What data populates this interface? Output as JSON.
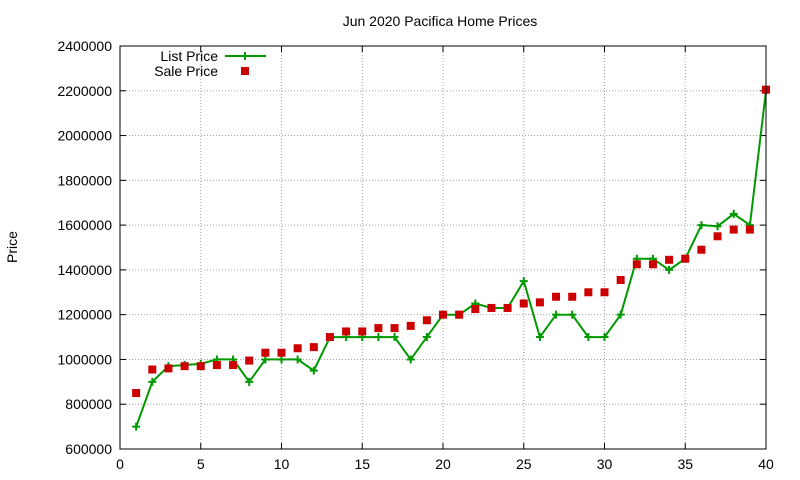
{
  "chart_data": {
    "type": "line",
    "title": "Jun 2020 Pacifica Home Prices",
    "xlabel": "",
    "ylabel": "Price",
    "xlim": [
      0,
      40
    ],
    "ylim": [
      600000,
      2400000
    ],
    "xticks": [
      0,
      5,
      10,
      15,
      20,
      25,
      30,
      35,
      40
    ],
    "yticks": [
      600000,
      800000,
      1000000,
      1200000,
      1400000,
      1600000,
      1800000,
      2000000,
      2200000,
      2400000
    ],
    "grid": true,
    "legend_position": "top-left",
    "series": [
      {
        "name": "List Price",
        "style": "line+cross",
        "color": "#009900",
        "x": [
          1,
          2,
          3,
          4,
          5,
          6,
          7,
          8,
          9,
          10,
          11,
          12,
          13,
          14,
          15,
          16,
          17,
          18,
          19,
          20,
          21,
          22,
          23,
          24,
          25,
          26,
          27,
          28,
          29,
          30,
          31,
          32,
          33,
          34,
          35,
          36,
          37,
          38,
          39,
          40
        ],
        "y": [
          700000,
          900000,
          970000,
          975000,
          980000,
          1000000,
          1000000,
          900000,
          1000000,
          1000000,
          1000000,
          950000,
          1100000,
          1100000,
          1100000,
          1100000,
          1100000,
          1000000,
          1100000,
          1200000,
          1200000,
          1250000,
          1230000,
          1230000,
          1350000,
          1100000,
          1200000,
          1200000,
          1100000,
          1100000,
          1200000,
          1450000,
          1450000,
          1400000,
          1450000,
          1600000,
          1595000,
          1650000,
          1600000,
          2200000
        ]
      },
      {
        "name": "Sale Price",
        "style": "square-markers",
        "color": "#cc0000",
        "x": [
          1,
          2,
          3,
          4,
          5,
          6,
          7,
          8,
          9,
          10,
          11,
          12,
          13,
          14,
          15,
          16,
          17,
          18,
          19,
          20,
          21,
          22,
          23,
          24,
          25,
          26,
          27,
          28,
          29,
          30,
          31,
          32,
          33,
          34,
          35,
          36,
          37,
          38,
          39,
          40
        ],
        "y": [
          850000,
          955000,
          960000,
          970000,
          970000,
          975000,
          975000,
          995000,
          1030000,
          1030000,
          1050000,
          1055000,
          1100000,
          1125000,
          1125000,
          1140000,
          1140000,
          1150000,
          1175000,
          1200000,
          1200000,
          1225000,
          1230000,
          1230000,
          1250000,
          1255000,
          1280000,
          1280000,
          1300000,
          1300000,
          1355000,
          1425000,
          1425000,
          1445000,
          1450000,
          1490000,
          1550000,
          1580000,
          1580000,
          2205000
        ]
      }
    ]
  }
}
